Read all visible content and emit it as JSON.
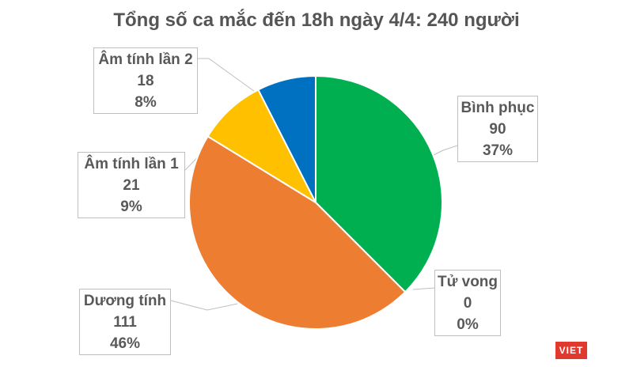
{
  "chart_data": {
    "type": "pie",
    "title": "Tổng số ca mắc đến 18h ngày 4/4: 240 người",
    "slices": [
      {
        "label": "Bình phục",
        "value": 90,
        "value_text": "90",
        "percent_text": "37%",
        "color": "#00b050"
      },
      {
        "label": "Tử vong",
        "value": 0,
        "value_text": "0",
        "percent_text": "0%",
        "color": "#a5a5a5"
      },
      {
        "label": "Dương tính",
        "value": 111,
        "value_text": "111",
        "percent_text": "46%",
        "color": "#ed7d31"
      },
      {
        "label": "Âm tính lần 1",
        "value": 21,
        "value_text": "21",
        "percent_text": "9%",
        "color": "#ffc000"
      },
      {
        "label": "Âm tính lần 2",
        "value": 18,
        "value_text": "18",
        "percent_text": "8%",
        "color": "#0070c0"
      }
    ],
    "start_angle": "12 o'clock, clockwise",
    "legend": "none"
  },
  "watermark": {
    "text": "VIET",
    "color": "#e03a2f"
  }
}
